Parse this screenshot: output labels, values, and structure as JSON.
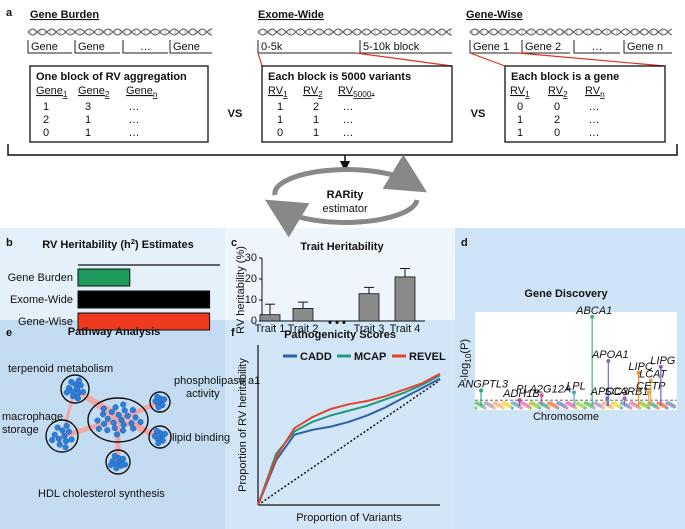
{
  "panel_a": {
    "label": "a",
    "columns": [
      {
        "title": "Gene Burden",
        "blocks": [
          "Gene",
          "Gene",
          "…",
          "Gene"
        ],
        "box_title": "One block of RV aggregation",
        "headers": [
          {
            "text": "Gene",
            "sub": "1"
          },
          {
            "text": "Gene",
            "sub": "2"
          },
          {
            "text": "Gene",
            "sub": "n"
          }
        ],
        "rows": [
          [
            "1",
            "3",
            "…"
          ],
          [
            "2",
            "1",
            "…"
          ],
          [
            "0",
            "1",
            "…"
          ]
        ]
      },
      {
        "title": "Exome-Wide",
        "blocks": [
          "0-5k",
          "5-10k block"
        ],
        "box_title": "Each block is 5000 variants",
        "headers": [
          {
            "text": "RV",
            "sub": "1"
          },
          {
            "text": "RV",
            "sub": "2"
          },
          {
            "text": "RV",
            "sub": "5000",
            "after": ","
          }
        ],
        "rows": [
          [
            "1",
            "2",
            "…"
          ],
          [
            "1",
            "1",
            "…"
          ],
          [
            "0",
            "1",
            "…"
          ]
        ]
      },
      {
        "title": "Gene-Wise",
        "blocks": [
          "Gene 1",
          "Gene 2",
          "…",
          "Gene n"
        ],
        "box_title": "Each block is a gene",
        "headers": [
          {
            "text": "RV",
            "sub": "1"
          },
          {
            "text": "RV",
            "sub": "2"
          },
          {
            "text": "RV",
            "sub": "n"
          }
        ],
        "rows": [
          [
            "0",
            "0",
            "…"
          ],
          [
            "1",
            "2",
            "…"
          ],
          [
            "1",
            "0",
            "…"
          ]
        ]
      }
    ],
    "vs": [
      "VS",
      "VS"
    ],
    "estimator_name": "RARity",
    "estimator_caption": "estimator"
  },
  "panel_b": {
    "label": "b",
    "type": "bar",
    "title": {
      "text": "RV Heritability (h",
      "sup": "2",
      "after": ") Estimates"
    },
    "categories": [
      "Gene Burden",
      "Exome-Wide",
      "Gene-Wise"
    ],
    "values": [
      0.37,
      0.94,
      0.94
    ],
    "colors": [
      "#1f9a5c",
      "#000000",
      "#ee3a1f"
    ],
    "xlim": [
      0,
      1
    ]
  },
  "panel_c": {
    "label": "c",
    "type": "bar",
    "title": "Trait Heritability",
    "y_label": "RV heritability (%)",
    "categories": [
      "Trait 1",
      "Trait 2",
      "• • •",
      "Trait 3",
      "Trait 4"
    ],
    "values": [
      3,
      6,
      null,
      13,
      21
    ],
    "errors": [
      5,
      3,
      null,
      3,
      4
    ],
    "color": "#8a8a8a",
    "ylim": [
      0,
      30
    ],
    "yticks": [
      0,
      10,
      20,
      30
    ]
  },
  "panel_d": {
    "label": "d",
    "type": "manhattan",
    "title": "Gene Discovery",
    "y_label": {
      "text": "-log",
      "sub": "10",
      "after": "(P)"
    },
    "x_label": "Chromosome",
    "xlim": [
      0,
      1
    ],
    "ylim": [
      0,
      1
    ],
    "threshold": 0.1,
    "hits": [
      {
        "label": "ANGPTL3",
        "x": 0.03,
        "y": 0.2,
        "color": "#2aa58a"
      },
      {
        "label": "ADH1B",
        "x": 0.22,
        "y": 0.1,
        "color": "#c0459b"
      },
      {
        "label": "PLA2G12A",
        "x": 0.33,
        "y": 0.15,
        "color": "#d9509a"
      },
      {
        "label": "LPL",
        "x": 0.49,
        "y": 0.18,
        "color": "#4aa3c8"
      },
      {
        "label": "ABCA1",
        "x": 0.58,
        "y": 0.95,
        "color": "#3fb38b"
      },
      {
        "label": "APOA1",
        "x": 0.66,
        "y": 0.5,
        "color": "#6a6fd0"
      },
      {
        "label": "APOC3",
        "x": 0.655,
        "y": 0.12,
        "color": "#6a6fd0"
      },
      {
        "label": "SCARB1",
        "x": 0.74,
        "y": 0.12,
        "color": "#9a62c8"
      },
      {
        "label": "LIPC",
        "x": 0.81,
        "y": 0.38,
        "color": "#f08a2a"
      },
      {
        "label": "LCAT",
        "x": 0.87,
        "y": 0.3,
        "color": "#f0a040"
      },
      {
        "label": "CETP",
        "x": 0.86,
        "y": 0.18,
        "color": "#f0a040"
      },
      {
        "label": "LIPG",
        "x": 0.92,
        "y": 0.44,
        "color": "#9055c0"
      }
    ]
  },
  "panel_e": {
    "label": "e",
    "title": "Pathway Analysis",
    "nodes": [
      {
        "label": [
          "terpenoid metabolism"
        ]
      },
      {
        "label": [
          "phospholipase a1",
          "activity"
        ]
      },
      {
        "label": [
          "macrophage",
          "storage"
        ]
      },
      {
        "label": [
          "lipid binding"
        ]
      },
      {
        "label": [
          "HDL cholesterol synthesis"
        ]
      }
    ]
  },
  "panel_f": {
    "label": "f",
    "type": "line",
    "title": "Pathogenicity Scores",
    "x_label": "Proportion of Variants",
    "y_label": "Proportion of RV heritability",
    "xlim": [
      0,
      1
    ],
    "ylim": [
      0,
      1
    ],
    "x": [
      0,
      0.1,
      0.2,
      0.3,
      0.4,
      0.5,
      0.6,
      0.7,
      0.8,
      0.9,
      1
    ],
    "series": [
      {
        "name": "CADD",
        "color": "#2d5fa6",
        "values": [
          0,
          0.28,
          0.44,
          0.47,
          0.49,
          0.52,
          0.56,
          0.61,
          0.67,
          0.73,
          0.79
        ]
      },
      {
        "name": "MCAP",
        "color": "#1f9a7a",
        "values": [
          0,
          0.32,
          0.46,
          0.52,
          0.56,
          0.59,
          0.62,
          0.66,
          0.7,
          0.75,
          0.81
        ]
      },
      {
        "name": "REVEL",
        "color": "#e2452f",
        "values": [
          0,
          0.3,
          0.48,
          0.55,
          0.6,
          0.63,
          0.65,
          0.68,
          0.72,
          0.76,
          0.82
        ]
      }
    ],
    "diagonal": {
      "x": [
        0,
        1
      ],
      "values": [
        0,
        0.78
      ]
    }
  }
}
